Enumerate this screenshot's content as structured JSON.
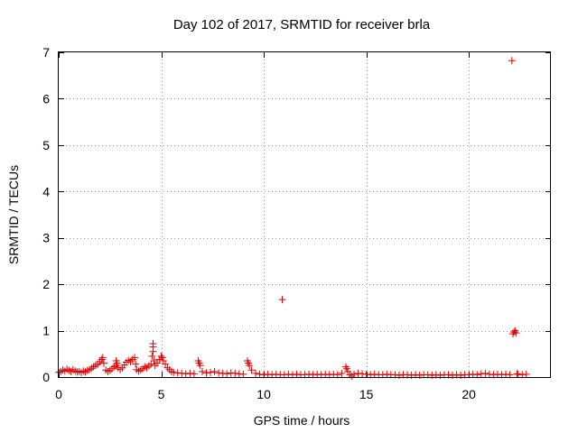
{
  "chart_data": {
    "type": "scatter",
    "title": "Day 102 of 2017, SRMTID for receiver brla",
    "xlabel": "GPS time / hours",
    "ylabel": "SRMTID / TECUs",
    "xlim": [
      0,
      24
    ],
    "ylim": [
      0,
      7
    ],
    "xticks": [
      0,
      5,
      10,
      15,
      20
    ],
    "yticks": [
      0,
      1,
      2,
      3,
      4,
      5,
      6,
      7
    ],
    "grid": true,
    "marker": "+",
    "color": "#e00000",
    "series": [
      {
        "name": "SRMTID",
        "points": [
          [
            0.0,
            0.1
          ],
          [
            0.1,
            0.12
          ],
          [
            0.2,
            0.15
          ],
          [
            0.3,
            0.13
          ],
          [
            0.4,
            0.17
          ],
          [
            0.5,
            0.14
          ],
          [
            0.6,
            0.12
          ],
          [
            0.7,
            0.16
          ],
          [
            0.8,
            0.13
          ],
          [
            0.9,
            0.11
          ],
          [
            1.0,
            0.12
          ],
          [
            1.1,
            0.1
          ],
          [
            1.2,
            0.13
          ],
          [
            1.3,
            0.11
          ],
          [
            1.4,
            0.14
          ],
          [
            1.5,
            0.16
          ],
          [
            1.6,
            0.19
          ],
          [
            1.7,
            0.22
          ],
          [
            1.8,
            0.25
          ],
          [
            1.9,
            0.28
          ],
          [
            2.0,
            0.33
          ],
          [
            2.1,
            0.38
          ],
          [
            2.15,
            0.42
          ],
          [
            2.2,
            0.3
          ],
          [
            2.3,
            0.15
          ],
          [
            2.4,
            0.12
          ],
          [
            2.5,
            0.14
          ],
          [
            2.6,
            0.18
          ],
          [
            2.7,
            0.22
          ],
          [
            2.8,
            0.25
          ],
          [
            2.8,
            0.35
          ],
          [
            2.85,
            0.3
          ],
          [
            2.9,
            0.2
          ],
          [
            3.0,
            0.16
          ],
          [
            3.1,
            0.2
          ],
          [
            3.2,
            0.26
          ],
          [
            3.3,
            0.32
          ],
          [
            3.4,
            0.36
          ],
          [
            3.5,
            0.33
          ],
          [
            3.6,
            0.38
          ],
          [
            3.7,
            0.42
          ],
          [
            3.75,
            0.28
          ],
          [
            3.8,
            0.16
          ],
          [
            3.9,
            0.13
          ],
          [
            4.0,
            0.15
          ],
          [
            4.1,
            0.18
          ],
          [
            4.2,
            0.22
          ],
          [
            4.3,
            0.2
          ],
          [
            4.4,
            0.24
          ],
          [
            4.5,
            0.28
          ],
          [
            4.55,
            0.45
          ],
          [
            4.6,
            0.55
          ],
          [
            4.6,
            0.65
          ],
          [
            4.6,
            0.72
          ],
          [
            4.65,
            0.35
          ],
          [
            4.7,
            0.25
          ],
          [
            4.8,
            0.3
          ],
          [
            4.9,
            0.38
          ],
          [
            5.0,
            0.45
          ],
          [
            5.05,
            0.42
          ],
          [
            5.1,
            0.35
          ],
          [
            5.2,
            0.28
          ],
          [
            5.3,
            0.2
          ],
          [
            5.4,
            0.16
          ],
          [
            5.5,
            0.12
          ],
          [
            5.6,
            0.1
          ],
          [
            5.8,
            0.09
          ],
          [
            6.0,
            0.08
          ],
          [
            6.2,
            0.07
          ],
          [
            6.4,
            0.08
          ],
          [
            6.6,
            0.07
          ],
          [
            6.8,
            0.35
          ],
          [
            6.85,
            0.3
          ],
          [
            6.9,
            0.25
          ],
          [
            7.0,
            0.12
          ],
          [
            7.2,
            0.09
          ],
          [
            7.4,
            0.1
          ],
          [
            7.6,
            0.12
          ],
          [
            7.8,
            0.09
          ],
          [
            8.0,
            0.08
          ],
          [
            8.2,
            0.07
          ],
          [
            8.4,
            0.09
          ],
          [
            8.6,
            0.08
          ],
          [
            8.8,
            0.07
          ],
          [
            9.0,
            0.06
          ],
          [
            9.2,
            0.35
          ],
          [
            9.25,
            0.3
          ],
          [
            9.3,
            0.25
          ],
          [
            9.4,
            0.15
          ],
          [
            9.6,
            0.08
          ],
          [
            9.8,
            0.06
          ],
          [
            10.0,
            0.05
          ],
          [
            10.2,
            0.06
          ],
          [
            10.4,
            0.05
          ],
          [
            10.6,
            0.06
          ],
          [
            10.8,
            0.05
          ],
          [
            10.9,
            1.67
          ],
          [
            11.0,
            0.05
          ],
          [
            11.2,
            0.06
          ],
          [
            11.4,
            0.05
          ],
          [
            11.6,
            0.06
          ],
          [
            11.8,
            0.05
          ],
          [
            12.0,
            0.05
          ],
          [
            12.2,
            0.06
          ],
          [
            12.4,
            0.05
          ],
          [
            12.6,
            0.06
          ],
          [
            12.8,
            0.05
          ],
          [
            13.0,
            0.06
          ],
          [
            13.2,
            0.05
          ],
          [
            13.4,
            0.06
          ],
          [
            13.6,
            0.05
          ],
          [
            13.8,
            0.08
          ],
          [
            14.0,
            0.22
          ],
          [
            14.05,
            0.18
          ],
          [
            14.1,
            0.12
          ],
          [
            14.2,
            0.05
          ],
          [
            14.3,
            0.02
          ],
          [
            14.4,
            0.06
          ],
          [
            14.6,
            0.08
          ],
          [
            14.8,
            0.07
          ],
          [
            15.0,
            0.06
          ],
          [
            15.2,
            0.05
          ],
          [
            15.4,
            0.06
          ],
          [
            15.6,
            0.05
          ],
          [
            15.8,
            0.05
          ],
          [
            16.0,
            0.06
          ],
          [
            16.2,
            0.05
          ],
          [
            16.4,
            0.05
          ],
          [
            16.6,
            0.04
          ],
          [
            16.8,
            0.05
          ],
          [
            17.0,
            0.05
          ],
          [
            17.2,
            0.04
          ],
          [
            17.4,
            0.05
          ],
          [
            17.6,
            0.04
          ],
          [
            17.8,
            0.05
          ],
          [
            18.0,
            0.05
          ],
          [
            18.2,
            0.04
          ],
          [
            18.4,
            0.05
          ],
          [
            18.6,
            0.04
          ],
          [
            18.8,
            0.05
          ],
          [
            19.0,
            0.05
          ],
          [
            19.2,
            0.04
          ],
          [
            19.4,
            0.05
          ],
          [
            19.6,
            0.04
          ],
          [
            19.8,
            0.05
          ],
          [
            20.0,
            0.05
          ],
          [
            20.2,
            0.06
          ],
          [
            20.4,
            0.05
          ],
          [
            20.6,
            0.07
          ],
          [
            20.8,
            0.08
          ],
          [
            21.0,
            0.06
          ],
          [
            21.2,
            0.05
          ],
          [
            21.4,
            0.06
          ],
          [
            21.6,
            0.05
          ],
          [
            21.8,
            0.06
          ],
          [
            22.0,
            0.05
          ],
          [
            22.1,
            6.82
          ],
          [
            22.15,
            0.93
          ],
          [
            22.2,
            0.97
          ],
          [
            22.25,
            1.0
          ],
          [
            22.3,
            0.95
          ],
          [
            22.35,
            0.07
          ],
          [
            22.4,
            0.06
          ],
          [
            22.6,
            0.05
          ],
          [
            22.8,
            0.06
          ]
        ]
      }
    ]
  }
}
